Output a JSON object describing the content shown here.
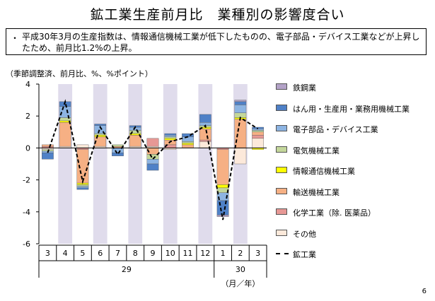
{
  "page": {
    "title": "鉱工業生産前月比　業種別の影響度合い",
    "note_bullet": "・",
    "note": "平成30年3月の生産指数は、情報通信機械工業が低下したものの、電子部品・デバイス工業などが上昇したため、前月比1.2%の上昇。",
    "units_label": "（季節調整済、前月比、%、%ポイント）",
    "page_number": "6"
  },
  "chart_data": {
    "type": "bar",
    "stacked": true,
    "ylim": [
      -6,
      4
    ],
    "yticks": [
      4,
      2,
      0,
      -2,
      -4,
      -6
    ],
    "categories": [
      "3",
      "4",
      "5",
      "6",
      "7",
      "8",
      "9",
      "10",
      "11",
      "12",
      "1",
      "2",
      "3"
    ],
    "year_groups": [
      {
        "label": "29",
        "start": 0,
        "end": 9
      },
      {
        "label": "30",
        "start": 10,
        "end": 12
      }
    ],
    "axis_unit_label": "（月／年）",
    "shaded_categories": [
      1,
      3,
      5,
      7,
      9,
      11
    ],
    "shade_color": "#e0dcec",
    "series": [
      {
        "name": "その他",
        "color": "#fce9da",
        "values": [
          -0.1,
          0.1,
          0.2,
          0.1,
          0.0,
          0.1,
          0.1,
          -0.1,
          0.0,
          0.4,
          0.0,
          -1.0,
          0.6
        ]
      },
      {
        "name": "化学工業（除. 医薬品）",
        "color": "#e79895",
        "values": [
          0.1,
          0.0,
          -0.1,
          0.0,
          0.0,
          0.0,
          0.5,
          0.2,
          0.0,
          0.1,
          -0.1,
          0.0,
          0.2
        ]
      },
      {
        "name": "輸送機械工業",
        "color": "#f6b084",
        "values": [
          0.1,
          1.5,
          -2.1,
          0.6,
          0.1,
          0.7,
          -0.4,
          0.3,
          0.2,
          0.7,
          -2.2,
          1.8,
          0.2
        ]
      },
      {
        "name": "情報通信機械工業",
        "color": "#ffff00",
        "values": [
          0.0,
          0.1,
          -0.1,
          0.1,
          0.0,
          0.1,
          0.0,
          0.1,
          0.1,
          0.1,
          -0.2,
          0.1,
          -0.1
        ]
      },
      {
        "name": "電気機械工業",
        "color": "#c4d79b",
        "values": [
          -0.1,
          0.2,
          -0.1,
          0.1,
          0.1,
          0.2,
          -0.3,
          0.1,
          0.1,
          0.1,
          -0.3,
          0.3,
          0.1
        ]
      },
      {
        "name": "電子部品・デバイス工業",
        "color": "#8db4e2",
        "values": [
          -0.1,
          0.7,
          -0.1,
          0.5,
          -0.3,
          0.2,
          -0.3,
          0.1,
          0.3,
          0.2,
          -0.5,
          0.5,
          0.1
        ]
      },
      {
        "name": "はん用・生産用・業務用機械工業",
        "color": "#4f81c7",
        "values": [
          -0.4,
          0.3,
          -0.1,
          0.1,
          -0.2,
          0.1,
          -0.4,
          0.1,
          0.2,
          0.5,
          -0.9,
          0.2,
          0.1
        ]
      },
      {
        "name": "鉄鋼業",
        "color": "#b3a2c7",
        "values": [
          0.0,
          0.0,
          0.0,
          0.0,
          0.0,
          0.0,
          0.0,
          0.0,
          0.0,
          0.0,
          -0.1,
          0.1,
          0.0
        ]
      }
    ],
    "line": {
      "name": "鉱工業",
      "values": [
        -0.3,
        2.9,
        -2.1,
        1.3,
        -0.4,
        1.3,
        -0.7,
        0.4,
        0.7,
        1.4,
        -4.5,
        1.9,
        1.2
      ]
    }
  }
}
